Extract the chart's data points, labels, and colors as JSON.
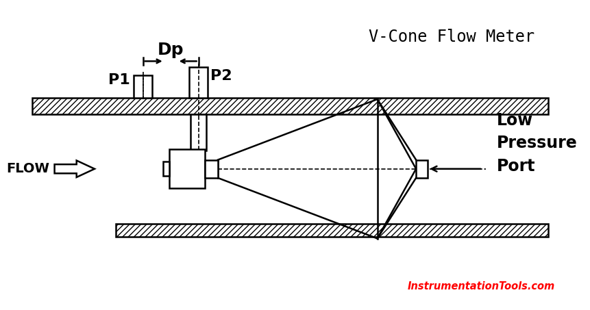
{
  "title": "V-Cone Flow Meter",
  "title_color": "#000000",
  "title_fontsize": 17,
  "bg_color": "#ffffff",
  "line_color": "#000000",
  "flow_label": "FLOW",
  "dp_label": "Dp",
  "p1_label": "P1",
  "p2_label": "P2",
  "low_pressure_label": "Low\nPressure\nPort",
  "watermark": "InstrumentationTools.com",
  "watermark_color": "#ff0000",
  "lw": 1.8
}
